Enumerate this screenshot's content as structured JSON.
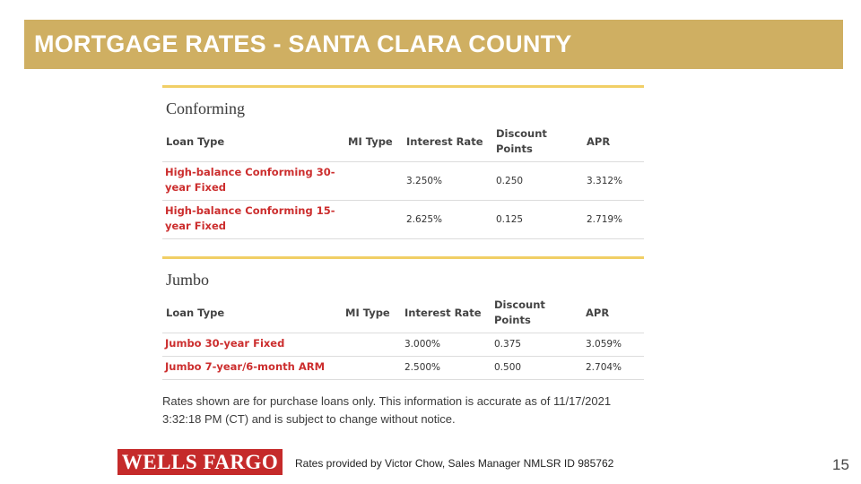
{
  "title": "MORTGAGE RATES - SANTA CLARA COUNTY",
  "columns": {
    "loan_type": "Loan Type",
    "mi_type": "MI Type",
    "interest_rate": "Interest Rate",
    "discount_points_line1": "Discount",
    "discount_points_line2": "Points",
    "apr": "APR"
  },
  "sections": [
    {
      "heading": "Conforming",
      "rows": [
        {
          "loan_line1": "High-balance Conforming 30-",
          "loan_line2": "year Fixed",
          "mi_type": "",
          "interest_rate": "3.250%",
          "discount_points": "0.250",
          "apr": "3.312%"
        },
        {
          "loan_line1": "High-balance Conforming 15-",
          "loan_line2": "year Fixed",
          "mi_type": "",
          "interest_rate": "2.625%",
          "discount_points": "0.125",
          "apr": "2.719%"
        }
      ]
    },
    {
      "heading": "Jumbo",
      "rows": [
        {
          "loan_line1": "Jumbo 30-year Fixed",
          "mi_type": "",
          "interest_rate": "3.000%",
          "discount_points": "0.375",
          "apr": "3.059%"
        },
        {
          "loan_line1": "Jumbo 7-year/6-month ARM",
          "mi_type": "",
          "interest_rate": "2.500%",
          "discount_points": "0.500",
          "apr": "2.704%"
        }
      ]
    }
  ],
  "disclaimer": "Rates shown are for purchase loans only. This information is accurate as of 11/17/2021 3:32:18 PM (CT) and is subject to change without notice.",
  "logo_text": "WELLS FARGO",
  "footer_note": "Rates provided by Victor Chow, Sales Manager NMLSR ID 985762",
  "page_number": "15",
  "colors": {
    "title_bar": "#cfaf62",
    "section_rule": "#f1cf66",
    "loan_link": "#cc2e2e",
    "logo_bg": "#c52a2a"
  }
}
